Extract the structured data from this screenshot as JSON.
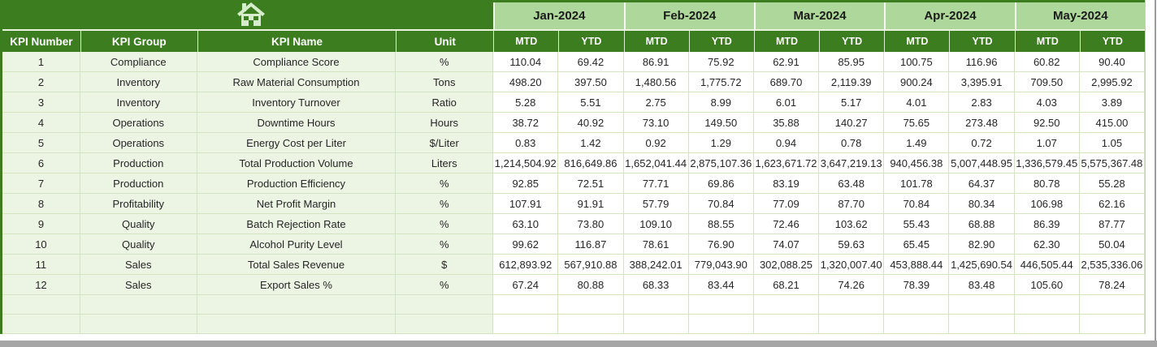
{
  "app": {
    "home_button": "Home"
  },
  "colors": {
    "header_dark_green": "#3C7D1F",
    "month_light_green": "#AED89B",
    "left_column_bg": "#ECF4E4",
    "gridline": "#D3E4C3",
    "scrollbar_gray": "#A6A6A6"
  },
  "table": {
    "left_headers": [
      "KPI Number",
      "KPI Group",
      "KPI Name",
      "Unit"
    ],
    "months": [
      "Jan-2024",
      "Feb-2024",
      "Mar-2024",
      "Apr-2024",
      "May-2024"
    ],
    "period_headers": [
      "MTD",
      "YTD"
    ],
    "empty_row_count": 2,
    "rows": [
      {
        "num": "1",
        "group": "Compliance",
        "name": "Compliance Score",
        "unit": "%",
        "values": [
          "110.04",
          "69.42",
          "86.91",
          "75.92",
          "62.91",
          "85.95",
          "100.75",
          "116.96",
          "60.82",
          "90.40"
        ]
      },
      {
        "num": "2",
        "group": "Inventory",
        "name": "Raw Material Consumption",
        "unit": "Tons",
        "values": [
          "498.20",
          "397.50",
          "1,480.56",
          "1,775.72",
          "689.70",
          "2,119.39",
          "900.24",
          "3,395.91",
          "709.50",
          "2,995.92"
        ]
      },
      {
        "num": "3",
        "group": "Inventory",
        "name": "Inventory Turnover",
        "unit": "Ratio",
        "values": [
          "5.28",
          "5.51",
          "2.75",
          "8.99",
          "6.01",
          "5.17",
          "4.01",
          "2.83",
          "4.03",
          "3.89"
        ]
      },
      {
        "num": "4",
        "group": "Operations",
        "name": "Downtime Hours",
        "unit": "Hours",
        "values": [
          "38.72",
          "40.92",
          "73.10",
          "149.50",
          "35.88",
          "140.27",
          "75.65",
          "273.48",
          "92.50",
          "415.00"
        ]
      },
      {
        "num": "5",
        "group": "Operations",
        "name": "Energy Cost per Liter",
        "unit": "$/Liter",
        "values": [
          "0.83",
          "1.42",
          "0.92",
          "1.29",
          "0.94",
          "0.78",
          "1.49",
          "0.72",
          "1.07",
          "1.05"
        ]
      },
      {
        "num": "6",
        "group": "Production",
        "name": "Total Production Volume",
        "unit": "Liters",
        "values": [
          "1,214,504.92",
          "816,649.86",
          "1,652,041.44",
          "2,875,107.36",
          "1,623,671.72",
          "3,647,219.13",
          "940,456.38",
          "5,007,448.95",
          "1,336,579.45",
          "5,575,367.48"
        ]
      },
      {
        "num": "7",
        "group": "Production",
        "name": "Production Efficiency",
        "unit": "%",
        "values": [
          "92.85",
          "72.51",
          "77.71",
          "69.86",
          "83.19",
          "63.48",
          "101.78",
          "64.37",
          "80.78",
          "55.28"
        ]
      },
      {
        "num": "8",
        "group": "Profitability",
        "name": "Net Profit Margin",
        "unit": "%",
        "values": [
          "107.91",
          "91.91",
          "57.79",
          "70.84",
          "77.09",
          "87.70",
          "70.84",
          "80.34",
          "106.98",
          "62.16"
        ]
      },
      {
        "num": "9",
        "group": "Quality",
        "name": "Batch Rejection Rate",
        "unit": "%",
        "values": [
          "63.10",
          "73.80",
          "109.10",
          "88.55",
          "72.46",
          "103.62",
          "55.43",
          "68.88",
          "86.39",
          "87.77"
        ]
      },
      {
        "num": "10",
        "group": "Quality",
        "name": "Alcohol Purity Level",
        "unit": "%",
        "values": [
          "99.62",
          "116.87",
          "78.61",
          "76.90",
          "74.07",
          "59.63",
          "65.45",
          "82.90",
          "62.30",
          "50.04"
        ]
      },
      {
        "num": "11",
        "group": "Sales",
        "name": "Total Sales Revenue",
        "unit": "$",
        "values": [
          "612,893.92",
          "567,910.88",
          "388,242.01",
          "779,043.90",
          "302,088.25",
          "1,320,007.40",
          "453,888.44",
          "1,425,690.54",
          "446,505.44",
          "2,535,336.06"
        ]
      },
      {
        "num": "12",
        "group": "Sales",
        "name": "Export Sales %",
        "unit": "%",
        "values": [
          "67.24",
          "80.88",
          "68.33",
          "83.44",
          "68.21",
          "74.26",
          "78.39",
          "83.48",
          "105.60",
          "78.24"
        ]
      }
    ]
  }
}
